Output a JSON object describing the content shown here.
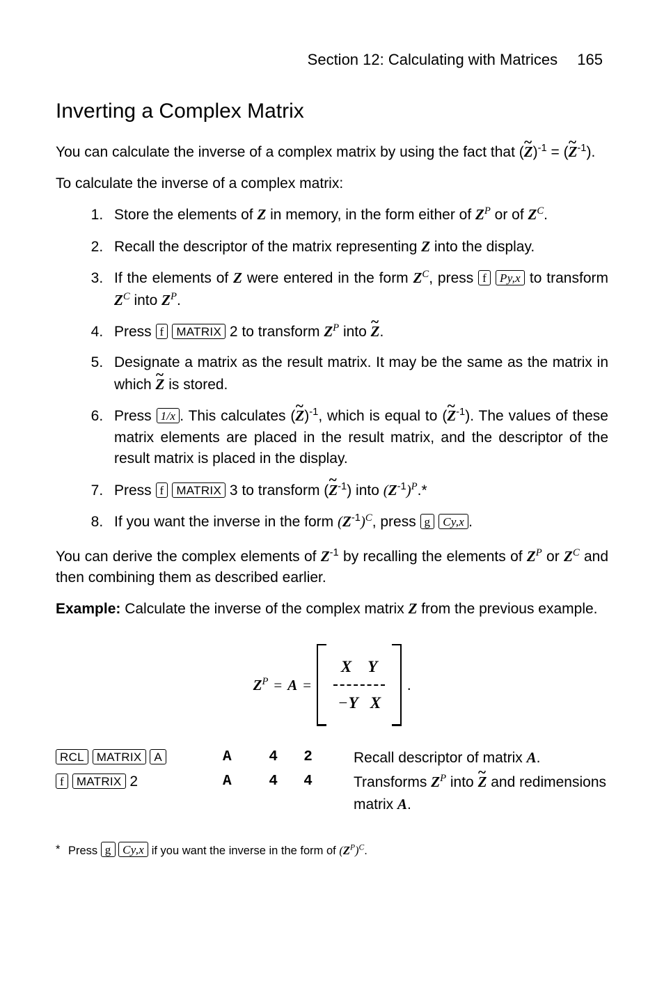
{
  "header": {
    "section": "Section 12: Calculating with Matrices",
    "page": "165"
  },
  "title": "Inverting a Complex Matrix",
  "intro1_a": "You can calculate the inverse of a complex matrix by using the fact that (",
  "intro1_b": ")",
  "intro1_sup": "-1",
  "intro1_c": " = (",
  "intro1_d": ").",
  "intro2": "To calculate the inverse of a complex matrix:",
  "step1_a": "Store the elements of ",
  "step1_b": " in memory, in the form either of ",
  "step1_c": " or of ",
  "step1_d": ".",
  "step2_a": "Recall the descriptor of the matrix representing ",
  "step2_b": " into the display.",
  "step3_a": "If the elements of ",
  "step3_b": " were entered in the form ",
  "step3_c": ", press ",
  "step3_d": " to transform ",
  "step3_e": " into ",
  "step3_f": ".",
  "step4_a": "Press ",
  "step4_b": " 2 to transform ",
  "step4_c": " into ",
  "step4_d": ".",
  "step5_a": "Designate a matrix as the result matrix. It may be the same as the matrix in which ",
  "step5_b": " is stored.",
  "step6_a": "Press ",
  "step6_b": ". This calculates (",
  "step6_c": ")",
  "step6_sup": "-1",
  "step6_d": ", which is equal to (",
  "step6_e": "). The values of these matrix elements are placed in the result matrix, and the descriptor of the result matrix is placed in the display.",
  "step7_a": "Press ",
  "step7_b": " 3 to transform (",
  "step7_c": ") into ",
  "step7_d": ".",
  "step8_a": "If you want the inverse in the form ",
  "step8_b": ", press ",
  "step8_c": ".",
  "post": "You can derive the complex elements of ",
  "post_b": " by recalling the elements of ",
  "post_c": " or ",
  "post_d": " and then combining them as described earlier.",
  "example_label": "Example:",
  "example_text": " Calculate the inverse of the complex matrix ",
  "example_text2": " from the previous example.",
  "eq": {
    "lhs1": "Z",
    "lhs1_sup": "P",
    "lhs2": "A",
    "row1": "X",
    "row2a": "−",
    "row2b": "Y",
    "row2c": "X",
    "row1_r": "Y"
  },
  "table": {
    "r1": {
      "keys": [
        "RCL",
        "MATRIX",
        "A"
      ],
      "display": "A   4  2",
      "expl": "Recall descriptor of matrix ",
      "expl_b": "."
    },
    "r2": {
      "keys": [
        "f",
        "MATRIX"
      ],
      "keysuffix": " 2",
      "display": "A   4  4",
      "expl_a": "Transforms ",
      "expl_b": " into ",
      "expl_c": " and redimensions matrix ",
      "expl_d": "."
    }
  },
  "footnote": {
    "mark": "*",
    "text_a": "Press ",
    "text_b": " if you want the inverse in the form of ",
    "text_c": "."
  },
  "key": {
    "f": "f",
    "g": "g",
    "RCL": "RCL",
    "MATRIX": "MATRIX",
    "A": "A",
    "Pyx": "Py,x",
    "Cyx": "Cy,x",
    "inv": "1/x"
  },
  "sym": {
    "Z": "Z",
    "ZP": "Z",
    "ZC": "Z",
    "Zinv": "Z",
    "A": "A",
    "X": "X",
    "Y": "Y",
    "sup_inv": "-1",
    "sup_P": "P",
    "sup_C": "C"
  },
  "colors": {
    "fg": "#000000",
    "bg": "#ffffff"
  }
}
